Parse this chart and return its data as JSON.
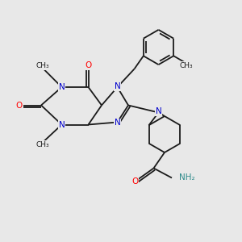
{
  "bg_color": "#e8e8e8",
  "figsize": [
    3.0,
    3.0
  ],
  "dpi": 100,
  "atom_colors": {
    "N": "#0000cc",
    "O": "#ff0000",
    "C": "#1a1a1a",
    "NH2_N": "#2e8b8b"
  },
  "bond_color": "#1a1a1a",
  "bond_lw": 1.3,
  "font_size_atom": 7.5,
  "font_size_methyl": 6.5,
  "xlim": [
    0,
    10
  ],
  "ylim": [
    0,
    10
  ]
}
